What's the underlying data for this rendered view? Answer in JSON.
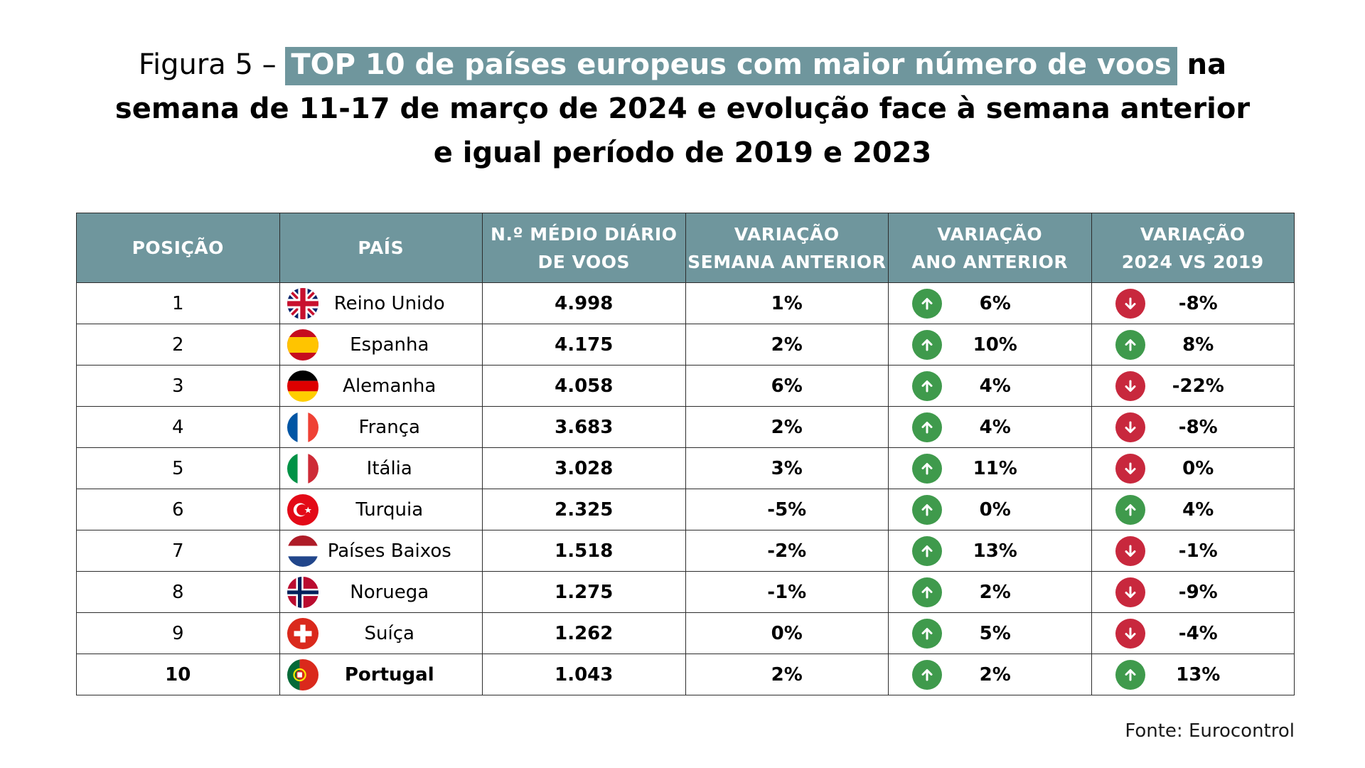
{
  "title": {
    "prefix": "Figura 5 – ",
    "highlight": "TOP 10 de países europeus com maior número de voos",
    "line1_rest": " na",
    "line2": "semana de 11-17 de março de 2024 e evolução face à semana anterior",
    "line3": "e igual período de 2019 e 2023"
  },
  "table": {
    "headers": {
      "position": "POSIÇÃO",
      "country": "PAÍS",
      "flights_l1": "N.º MÉDIO DIÁRIO",
      "flights_l2": "DE VOOS",
      "week_l1": "VARIAÇÃO",
      "week_l2": "SEMANA ANTERIOR",
      "year_l1": "VARIAÇÃO",
      "year_l2": "ANO ANTERIOR",
      "y2019_l1": "VARIAÇÃO",
      "y2019_l2": "2024 VS 2019"
    },
    "rows": [
      {
        "position": "1",
        "country": "Reino Unido",
        "flag": "uk-flag-icon",
        "flights": "4.998",
        "week": "1%",
        "year": "6%",
        "year_dir": "up",
        "vs2019": "-8%",
        "vs2019_dir": "down"
      },
      {
        "position": "2",
        "country": "Espanha",
        "flag": "spain-flag-icon",
        "flights": "4.175",
        "week": "2%",
        "year": "10%",
        "year_dir": "up",
        "vs2019": "8%",
        "vs2019_dir": "up"
      },
      {
        "position": "3",
        "country": "Alemanha",
        "flag": "germany-flag-icon",
        "flights": "4.058",
        "week": "6%",
        "year": "4%",
        "year_dir": "up",
        "vs2019": "-22%",
        "vs2019_dir": "down"
      },
      {
        "position": "4",
        "country": "França",
        "flag": "france-flag-icon",
        "flights": "3.683",
        "week": "2%",
        "year": "4%",
        "year_dir": "up",
        "vs2019": "-8%",
        "vs2019_dir": "down"
      },
      {
        "position": "5",
        "country": "Itália",
        "flag": "italy-flag-icon",
        "flights": "3.028",
        "week": "3%",
        "year": "11%",
        "year_dir": "up",
        "vs2019": "0%",
        "vs2019_dir": "down"
      },
      {
        "position": "6",
        "country": "Turquia",
        "flag": "turkey-flag-icon",
        "flights": "2.325",
        "week": "-5%",
        "year": "0%",
        "year_dir": "up",
        "vs2019": "4%",
        "vs2019_dir": "up"
      },
      {
        "position": "7",
        "country": "Países Baixos",
        "flag": "netherlands-flag-icon",
        "flights": "1.518",
        "week": "-2%",
        "year": "13%",
        "year_dir": "up",
        "vs2019": "-1%",
        "vs2019_dir": "down"
      },
      {
        "position": "8",
        "country": "Noruega",
        "flag": "norway-flag-icon",
        "flights": "1.275",
        "week": "-1%",
        "year": "2%",
        "year_dir": "up",
        "vs2019": "-9%",
        "vs2019_dir": "down"
      },
      {
        "position": "9",
        "country": "Suíça",
        "flag": "switzerland-flag-icon",
        "flights": "1.262",
        "week": "0%",
        "year": "5%",
        "year_dir": "up",
        "vs2019": "-4%",
        "vs2019_dir": "down"
      },
      {
        "position": "10",
        "country": "Portugal",
        "flag": "portugal-flag-icon",
        "flights": "1.043",
        "week": "2%",
        "year": "2%",
        "year_dir": "up",
        "vs2019": "13%",
        "vs2019_dir": "up",
        "highlight": true
      }
    ]
  },
  "source": "Fonte: Eurocontrol",
  "colors": {
    "header_bg": "#6f969d",
    "up": "#3f9a4c",
    "down": "#c8283d"
  }
}
